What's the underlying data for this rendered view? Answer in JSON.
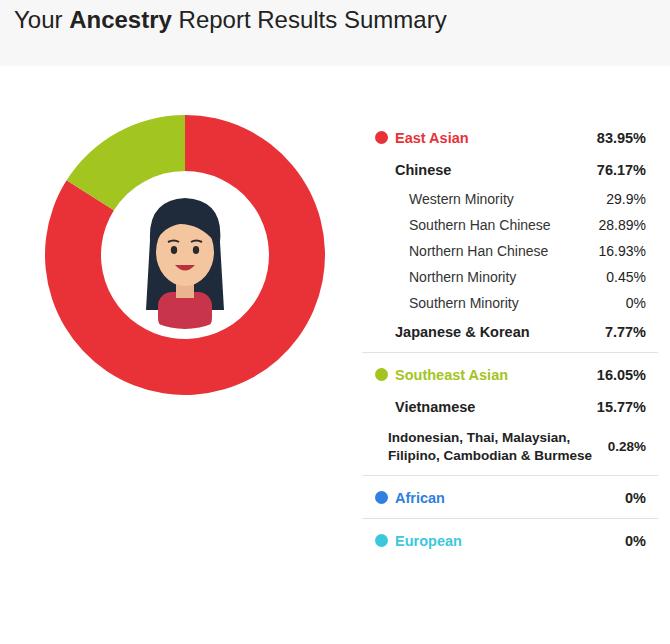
{
  "header": {
    "title": "Your Ancestry Report Results Summary",
    "emphasis": "Ancestry"
  },
  "chart_data": {
    "type": "pie",
    "categories": [
      "East Asian",
      "Southeast Asian",
      "African",
      "European"
    ],
    "values": [
      83.95,
      16.05,
      0,
      0
    ],
    "value_labels": [
      "83.95%",
      "16.05%",
      "0%",
      "0%"
    ],
    "colors": [
      "#e83237",
      "#a2c520",
      "#2f80e0",
      "#3cc8dc"
    ],
    "data_labels": false
  },
  "breakdown": [
    [
      {
        "name": "Chinese",
        "value": "76.17%",
        "children": [
          {
            "name": "Western Minority",
            "value": "29.9%"
          },
          {
            "name": "Southern Han Chinese",
            "value": "28.89%"
          },
          {
            "name": "Northern Han Chinese",
            "value": "16.93%"
          },
          {
            "name": "Northern Minority",
            "value": "0.45%"
          },
          {
            "name": "Southern Minority",
            "value": "0%"
          }
        ]
      },
      {
        "name": "Japanese & Korean",
        "value": "7.77%"
      }
    ],
    [
      {
        "name": "Vietnamese",
        "value": "15.77%"
      },
      {
        "name": "Indonesian, Thai, Malaysian, Filipino, Cambodian & Burmese",
        "value": "0.28%"
      }
    ],
    [],
    []
  ]
}
